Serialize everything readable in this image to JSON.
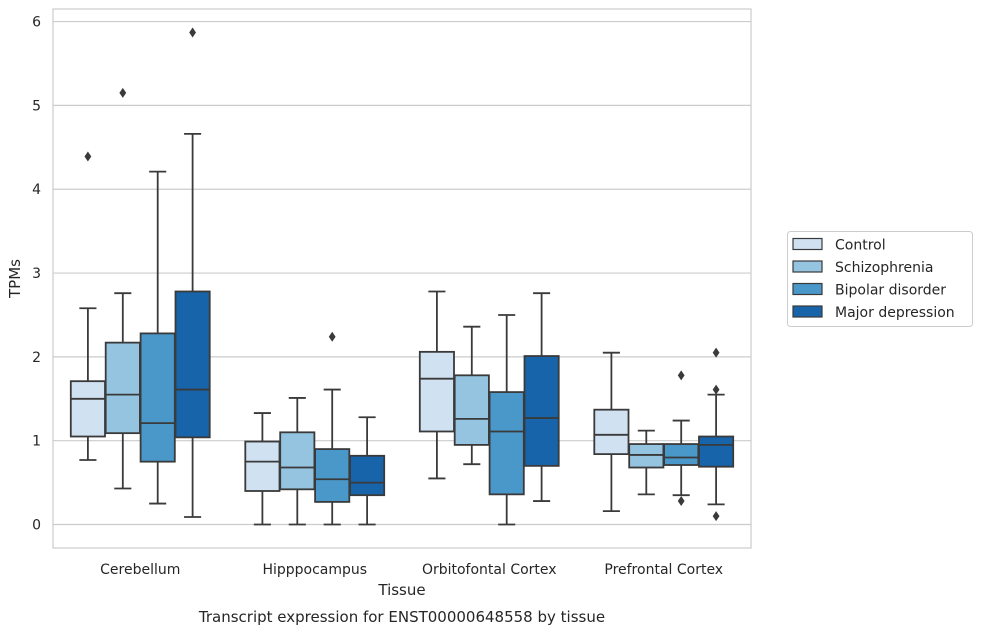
{
  "chart_data": {
    "type": "box",
    "title": "",
    "caption": "Transcript expression for ENST00000648558 by tissue",
    "xlabel": "Tissue",
    "ylabel": "TPMs",
    "ylim": [
      -0.28,
      6.15
    ],
    "yticks": [
      0,
      1,
      2,
      3,
      4,
      5,
      6
    ],
    "grid": "horizontal",
    "legend_position": "right",
    "categories": [
      "Cerebellum",
      "Hipppocampus",
      "Orbitofontal Cortex",
      "Prefrontal Cortex"
    ],
    "series": [
      {
        "name": "Control",
        "color": "#d0e1f2",
        "boxes": [
          {
            "whisker_low": 0.77,
            "q1": 1.05,
            "median": 1.5,
            "q3": 1.71,
            "whisker_high": 2.58,
            "outliers": [
              4.39
            ]
          },
          {
            "whisker_low": 0.0,
            "q1": 0.4,
            "median": 0.75,
            "q3": 0.99,
            "whisker_high": 1.33,
            "outliers": []
          },
          {
            "whisker_low": 0.55,
            "q1": 1.11,
            "median": 1.74,
            "q3": 2.06,
            "whisker_high": 2.78,
            "outliers": []
          },
          {
            "whisker_low": 0.16,
            "q1": 0.84,
            "median": 1.07,
            "q3": 1.37,
            "whisker_high": 2.05,
            "outliers": []
          }
        ]
      },
      {
        "name": "Schizophrenia",
        "color": "#94c4df",
        "boxes": [
          {
            "whisker_low": 0.43,
            "q1": 1.09,
            "median": 1.55,
            "q3": 2.17,
            "whisker_high": 2.76,
            "outliers": [
              5.15
            ]
          },
          {
            "whisker_low": 0.0,
            "q1": 0.42,
            "median": 0.68,
            "q3": 1.1,
            "whisker_high": 1.51,
            "outliers": []
          },
          {
            "whisker_low": 0.72,
            "q1": 0.95,
            "median": 1.26,
            "q3": 1.78,
            "whisker_high": 2.36,
            "outliers": []
          },
          {
            "whisker_low": 0.36,
            "q1": 0.68,
            "median": 0.83,
            "q3": 0.96,
            "whisker_high": 1.12,
            "outliers": []
          }
        ]
      },
      {
        "name": "Bipolar disorder",
        "color": "#4a98c9",
        "boxes": [
          {
            "whisker_low": 0.25,
            "q1": 0.75,
            "median": 1.21,
            "q3": 2.28,
            "whisker_high": 4.21,
            "outliers": []
          },
          {
            "whisker_low": 0.0,
            "q1": 0.27,
            "median": 0.54,
            "q3": 0.9,
            "whisker_high": 1.61,
            "outliers": [
              2.24
            ]
          },
          {
            "whisker_low": 0.0,
            "q1": 0.36,
            "median": 1.11,
            "q3": 1.58,
            "whisker_high": 2.5,
            "outliers": []
          },
          {
            "whisker_low": 0.35,
            "q1": 0.71,
            "median": 0.8,
            "q3": 0.96,
            "whisker_high": 1.24,
            "outliers": [
              1.78,
              0.28
            ]
          }
        ]
      },
      {
        "name": "Major depression",
        "color": "#1764ab",
        "boxes": [
          {
            "whisker_low": 0.09,
            "q1": 1.04,
            "median": 1.61,
            "q3": 2.78,
            "whisker_high": 4.66,
            "outliers": [
              5.87
            ]
          },
          {
            "whisker_low": 0.0,
            "q1": 0.35,
            "median": 0.5,
            "q3": 0.82,
            "whisker_high": 1.28,
            "outliers": []
          },
          {
            "whisker_low": 0.28,
            "q1": 0.7,
            "median": 1.27,
            "q3": 2.01,
            "whisker_high": 2.76,
            "outliers": []
          },
          {
            "whisker_low": 0.24,
            "q1": 0.69,
            "median": 0.95,
            "q3": 1.05,
            "whisker_high": 1.55,
            "outliers": [
              2.05,
              1.61,
              0.1
            ]
          }
        ]
      }
    ]
  }
}
